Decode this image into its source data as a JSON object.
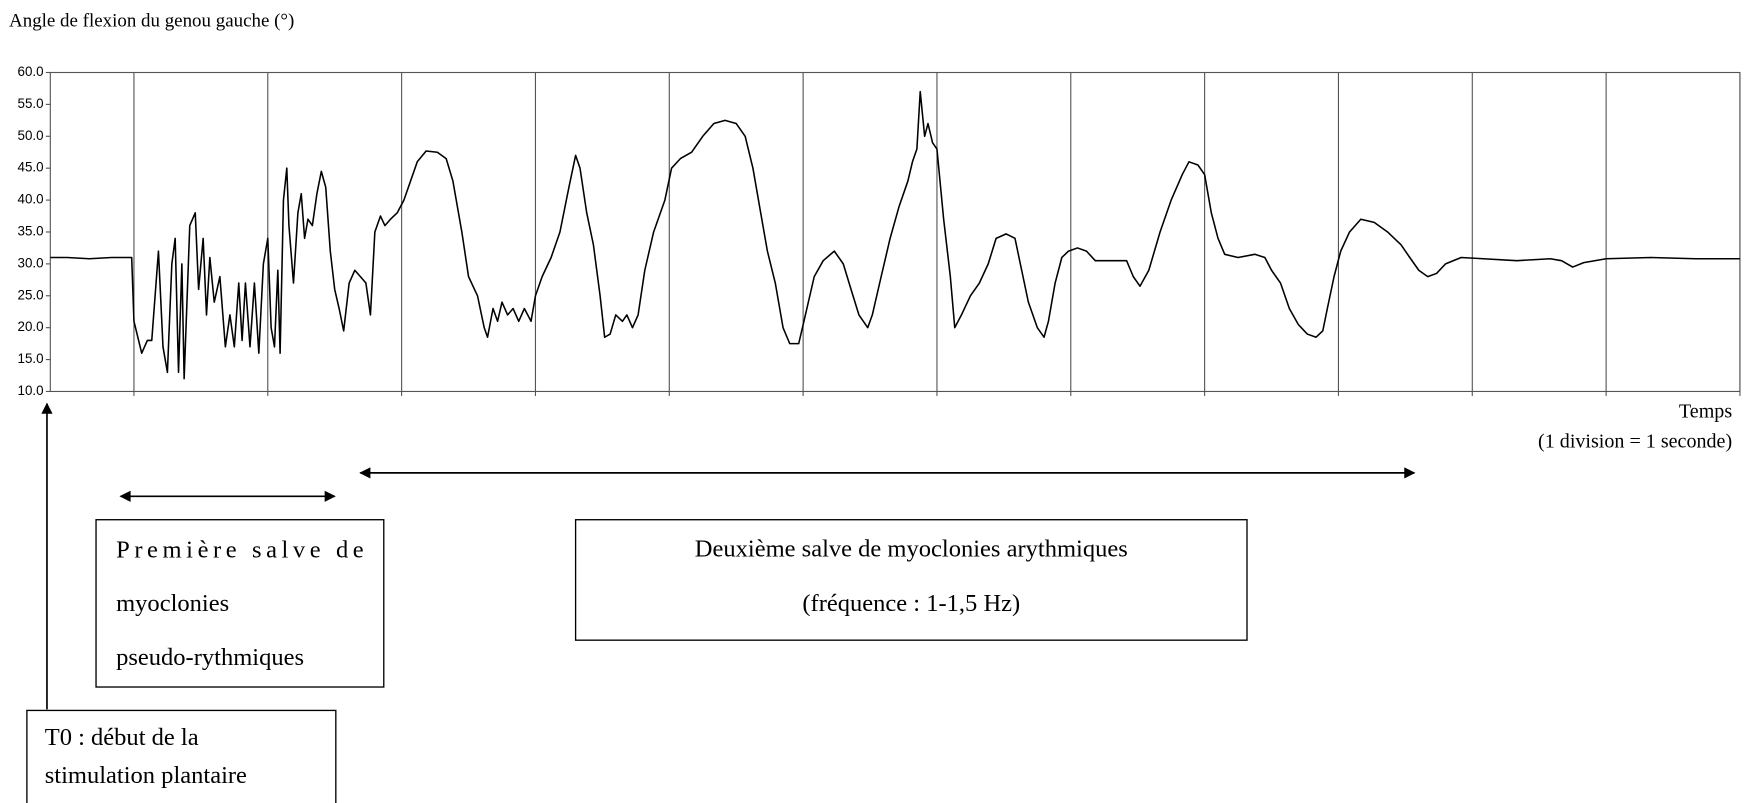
{
  "chart_data": {
    "type": "line",
    "title": "Angle de flexion du genou gauche (°)",
    "xlabel": "Temps",
    "xlabel_note": "(1 division = 1 seconde)",
    "color": "#000000",
    "xlim": [
      -0.625,
      12
    ],
    "xticks": [
      0,
      1,
      2,
      3,
      4,
      5,
      6,
      7,
      8,
      9,
      10,
      11,
      12
    ],
    "ylim": [
      10,
      60
    ],
    "yticks": [
      {
        "value": 10,
        "label": "10.0"
      },
      {
        "value": 15,
        "label": "15.0"
      },
      {
        "value": 20,
        "label": "20.0"
      },
      {
        "value": 25,
        "label": "25.0"
      },
      {
        "value": 30,
        "label": "30.0"
      },
      {
        "value": 35,
        "label": "35.0"
      },
      {
        "value": 40,
        "label": "40.0"
      },
      {
        "value": 45,
        "label": "45.0"
      },
      {
        "value": 50,
        "label": "50.0"
      },
      {
        "value": 55,
        "label": "55.0"
      },
      {
        "value": 60,
        "label": "60.0"
      }
    ],
    "grid": true,
    "x": [
      -0.625,
      -0.5,
      -0.333,
      -0.167,
      -0.017,
      0,
      0.058,
      0.1,
      0.133,
      0.183,
      0.217,
      0.25,
      0.283,
      0.308,
      0.333,
      0.358,
      0.375,
      0.417,
      0.458,
      0.483,
      0.517,
      0.542,
      0.567,
      0.6,
      0.642,
      0.683,
      0.717,
      0.75,
      0.783,
      0.808,
      0.833,
      0.867,
      0.9,
      0.933,
      0.967,
      1,
      1.025,
      1.05,
      1.075,
      1.092,
      1.117,
      1.142,
      1.158,
      1.192,
      1.225,
      1.25,
      1.275,
      1.3,
      1.333,
      1.367,
      1.4,
      1.433,
      1.467,
      1.5,
      1.533,
      1.567,
      1.608,
      1.65,
      1.692,
      1.733,
      1.767,
      1.8,
      1.842,
      1.875,
      1.917,
      1.967,
      2.017,
      2.067,
      2.117,
      2.183,
      2.267,
      2.333,
      2.383,
      2.45,
      2.5,
      2.567,
      2.617,
      2.642,
      2.683,
      2.717,
      2.75,
      2.792,
      2.833,
      2.875,
      2.917,
      2.967,
      3,
      3.05,
      3.117,
      3.183,
      3.25,
      3.3,
      3.333,
      3.383,
      3.433,
      3.483,
      3.517,
      3.558,
      3.6,
      3.65,
      3.683,
      3.725,
      3.767,
      3.817,
      3.883,
      3.967,
      4.017,
      4.083,
      4.167,
      4.25,
      4.333,
      4.417,
      4.5,
      4.567,
      4.625,
      4.683,
      4.733,
      4.792,
      4.85,
      4.9,
      4.967,
      5.017,
      5.083,
      5.15,
      5.233,
      5.3,
      5.358,
      5.417,
      5.483,
      5.517,
      5.583,
      5.65,
      5.717,
      5.783,
      5.817,
      5.85,
      5.875,
      5.908,
      5.933,
      5.967,
      6,
      6.05,
      6.1,
      6.133,
      6.183,
      6.25,
      6.317,
      6.383,
      6.442,
      6.517,
      6.583,
      6.633,
      6.683,
      6.75,
      6.8,
      6.833,
      6.883,
      6.933,
      6.983,
      7.05,
      7.117,
      7.183,
      7.417,
      7.467,
      7.517,
      7.583,
      7.667,
      7.75,
      7.833,
      7.883,
      7.95,
      8,
      8.05,
      8.1,
      8.15,
      8.25,
      8.375,
      8.45,
      8.5,
      8.567,
      8.633,
      8.7,
      8.767,
      8.833,
      8.883,
      8.917,
      8.967,
      9.017,
      9.083,
      9.167,
      9.267,
      9.367,
      9.467,
      9.533,
      9.6,
      9.667,
      9.733,
      9.8,
      9.917,
      10.083,
      10.333,
      10.583,
      10.667,
      10.75,
      10.833,
      11,
      11.333,
      11.667,
      12
    ],
    "values": [
      31,
      31,
      30.8,
      31,
      31,
      21,
      16,
      18,
      18,
      32,
      17,
      13,
      30,
      34,
      13,
      30,
      12,
      36,
      38,
      26,
      34,
      22,
      31,
      24,
      28,
      17,
      22,
      17,
      27,
      18,
      27,
      17,
      27,
      16,
      30,
      34,
      20,
      17,
      29,
      16,
      40,
      45,
      36,
      27,
      38,
      41,
      34,
      37,
      36,
      41,
      44.5,
      42,
      32,
      26,
      23,
      19.5,
      27,
      29,
      28,
      27,
      22,
      35,
      37.5,
      36,
      37,
      38,
      40,
      43,
      46,
      47.7,
      47.5,
      46.5,
      43,
      35,
      28,
      25,
      20,
      18.5,
      23,
      21,
      24,
      22,
      23,
      21,
      23,
      21,
      25,
      28,
      31,
      35,
      42,
      47,
      45,
      38,
      33,
      25,
      18.5,
      19,
      22,
      21,
      22,
      20,
      22,
      29,
      35,
      40,
      45,
      46.5,
      47.5,
      50,
      52,
      52.5,
      52,
      50,
      45,
      38,
      32,
      27,
      20,
      17.5,
      17.5,
      22,
      28,
      30.5,
      32,
      30,
      26,
      22,
      20,
      22,
      28,
      34,
      39,
      43,
      46,
      48,
      57,
      50,
      52,
      49,
      48,
      37,
      28,
      20,
      22,
      25,
      27,
      30,
      34,
      34.7,
      34,
      29,
      24,
      20,
      18.5,
      21,
      27,
      31,
      32,
      32.5,
      32,
      30.5,
      30.5,
      28,
      26.5,
      29,
      35,
      40,
      44,
      46,
      45.5,
      44,
      38,
      34,
      31.5,
      31,
      31.5,
      31,
      29,
      27,
      23,
      20.5,
      19,
      18.5,
      19.5,
      23,
      28,
      32,
      35,
      37,
      36.5,
      35,
      33,
      31,
      29,
      28,
      28.5,
      30,
      31,
      30.8,
      30.5,
      30.8,
      30.5,
      29.5,
      30.2,
      30.8,
      31,
      30.8,
      30.8
    ],
    "annotations": [
      {
        "lines": [
          "Première salve de",
          "myoclonies",
          "pseudo-rythmiques"
        ]
      },
      {
        "lines": [
          "Deuxième salve de myoclonies arythmiques",
          "(fréquence : 1-1,5 Hz)"
        ]
      },
      {
        "lines": [
          "T0 : début de la",
          "stimulation plantaire"
        ]
      }
    ]
  }
}
